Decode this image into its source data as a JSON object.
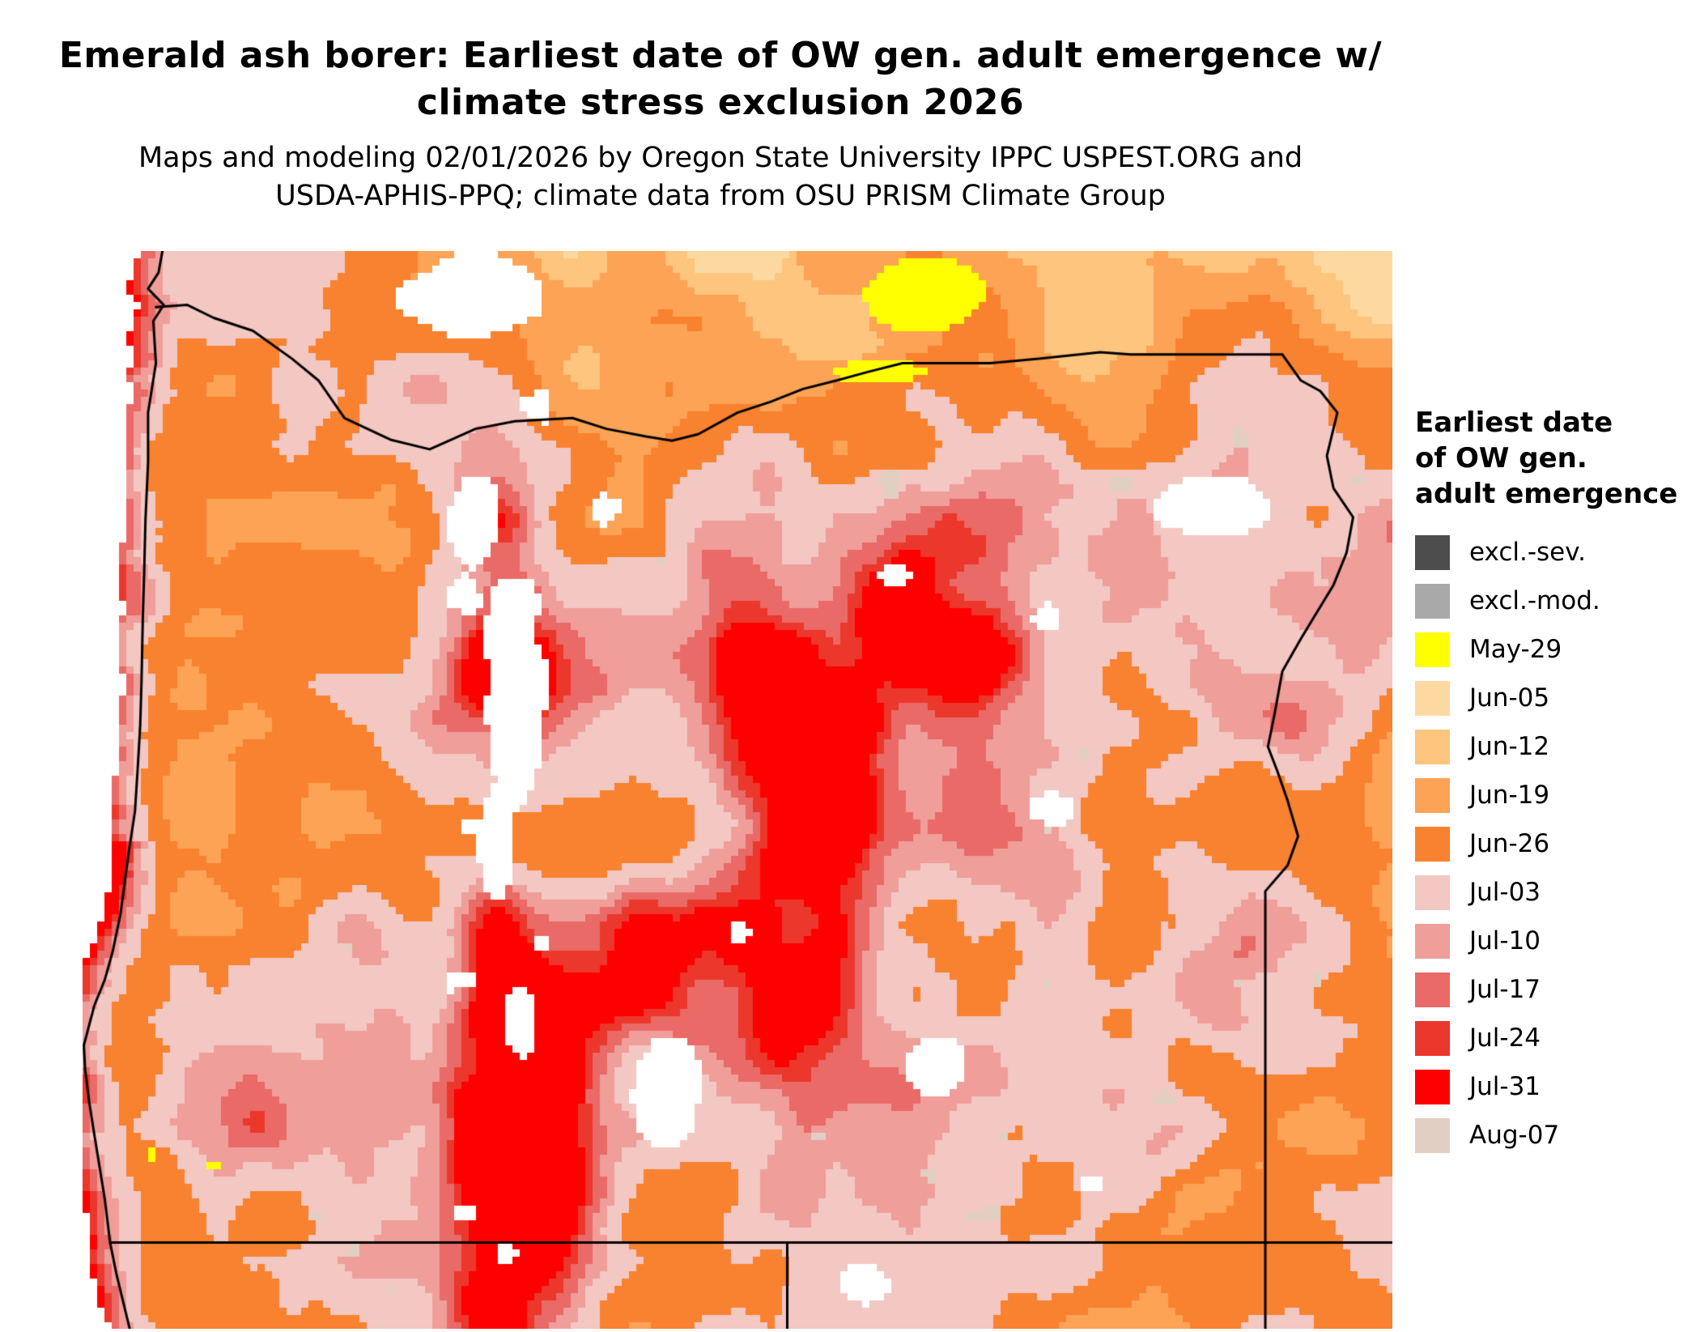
{
  "header": {
    "title_line1": "Emerald ash borer: Earliest date of OW gen. adult emergence w/",
    "title_line2": "climate stress exclusion 2026",
    "subtitle_line1": "Maps and modeling 02/01/2026 by Oregon State University IPPC USPEST.ORG and",
    "subtitle_line2": "USDA-APHIS-PPQ; climate data from OSU PRISM Climate Group"
  },
  "legend": {
    "title_line1": "Earliest date",
    "title_line2": "of OW gen.",
    "title_line3": "adult emergence",
    "entries": [
      {
        "label": "excl.-sev.",
        "color": "#4d4d4d"
      },
      {
        "label": "excl.-mod.",
        "color": "#a9a9a9"
      },
      {
        "label": "May-29",
        "color": "#ffff00"
      },
      {
        "label": "Jun-05",
        "color": "#fdd9a2"
      },
      {
        "label": "Jun-12",
        "color": "#fdc57e"
      },
      {
        "label": "Jun-19",
        "color": "#fca355"
      },
      {
        "label": "Jun-26",
        "color": "#f8822f"
      },
      {
        "label": "Jul-03",
        "color": "#f3c7c2"
      },
      {
        "label": "Jul-10",
        "color": "#ef9e9a"
      },
      {
        "label": "Jul-17",
        "color": "#e96a66"
      },
      {
        "label": "Jul-24",
        "color": "#ec372c"
      },
      {
        "label": "Jul-31",
        "color": "#fe0000"
      },
      {
        "label": "Aug-07",
        "color": "#e2cfc3"
      }
    ]
  },
  "map": {
    "region": "raster-map",
    "ocean_color": "#ffffff",
    "nodata_color": "#ffffff",
    "border_color": "#000000"
  }
}
